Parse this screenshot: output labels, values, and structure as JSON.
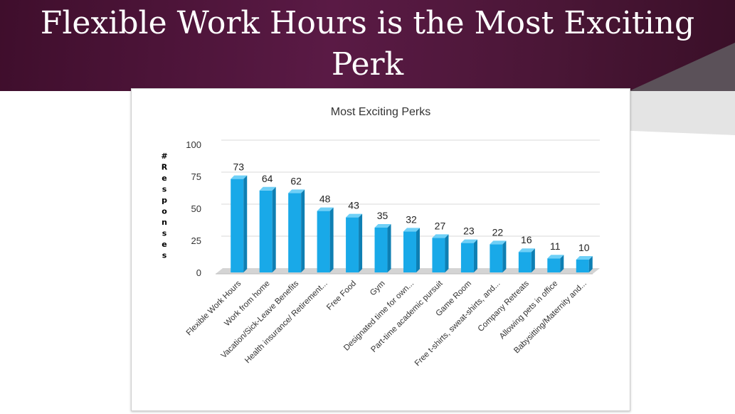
{
  "slide": {
    "title": "Flexible Work Hours is the Most Exciting Perk"
  },
  "colors": {
    "banner": "#4f1640",
    "bar_front": "#19a9e8",
    "bar_side": "#0e7fb3",
    "bar_top": "#6fd0f7",
    "floor": "#d4d4d4",
    "grid": "#d9d9d9"
  },
  "chart_data": {
    "type": "bar",
    "title": "Most Exciting Perks",
    "ylabel": "# Responses",
    "xlabel": "",
    "ylim": [
      0,
      100
    ],
    "yticks": [
      0,
      25,
      50,
      75,
      100
    ],
    "grid": true,
    "style": "3d-column",
    "categories": [
      "Flexible Work Hours",
      "Work from home",
      "Vacation/Sick-Leave Benefits",
      "Health insurance/ Retirement...",
      "Free Food",
      "Gym",
      "Designated time for own...",
      "Part-time academic pursuit",
      "Game Room",
      "Free t-shirts, sweat-shirts, and...",
      "Company Retreats",
      "Allowing pets in office",
      "Babysitting/Maternity and..."
    ],
    "values": [
      73,
      64,
      62,
      48,
      43,
      35,
      32,
      27,
      23,
      22,
      16,
      11,
      10
    ]
  }
}
